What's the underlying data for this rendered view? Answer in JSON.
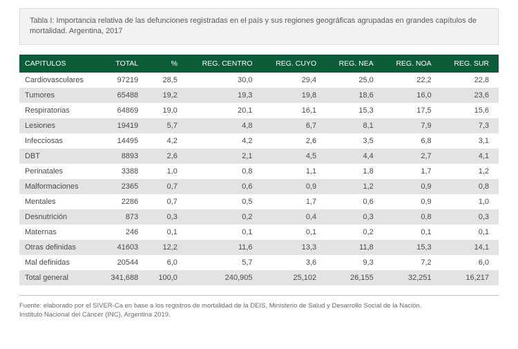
{
  "caption": "Tabla I: Importancia relativa de las defunciones registradas en el país y sus regiones geográficas agrupadas en grandes capítulos de mortalidad. Argentina, 2017",
  "table": {
    "header_bg": "#0d5c3a",
    "header_color": "#ffffff",
    "row_odd_bg": "#ffffff",
    "row_even_bg": "#e3e3e3",
    "columns": [
      "CAPITULOS",
      "TOTAL",
      "%",
      "REG. CENTRO",
      "REG. CUYO",
      "REG. NEA",
      "REG. NOA",
      "REG. SUR"
    ],
    "rows": [
      {
        "label": "Cardiovasculares",
        "total": "97219",
        "pct": "28,5",
        "centro": "30,0",
        "cuyo": "29,4",
        "nea": "25,0",
        "noa": "22,2",
        "sur": "22,8"
      },
      {
        "label": "Tumores",
        "total": "65488",
        "pct": "19,2",
        "centro": "19,3",
        "cuyo": "19,8",
        "nea": "18,6",
        "noa": "16,0",
        "sur": "23,6"
      },
      {
        "label": "Respiratorias",
        "total": "64869",
        "pct": "19,0",
        "centro": "20,1",
        "cuyo": "16,1",
        "nea": "15,3",
        "noa": "17,5",
        "sur": "15,6"
      },
      {
        "label": "Lesiones",
        "total": "19419",
        "pct": "5,7",
        "centro": "4,8",
        "cuyo": "6,7",
        "nea": "8,1",
        "noa": "7,9",
        "sur": "7,3"
      },
      {
        "label": "Infecciosas",
        "total": "14495",
        "pct": "4,2",
        "centro": "4,2",
        "cuyo": "2,6",
        "nea": "3,5",
        "noa": "6,8",
        "sur": "3,1"
      },
      {
        "label": "DBT",
        "total": "8893",
        "pct": "2,6",
        "centro": "2,1",
        "cuyo": "4,5",
        "nea": "4,4",
        "noa": "2,7",
        "sur": "4,1"
      },
      {
        "label": "Perinatales",
        "total": "3388",
        "pct": "1,0",
        "centro": "0,8",
        "cuyo": "1,1",
        "nea": "1,8",
        "noa": "1,7",
        "sur": "1,2"
      },
      {
        "label": "Malformaciones",
        "total": "2365",
        "pct": "0,7",
        "centro": "0,6",
        "cuyo": "0,9",
        "nea": "1,2",
        "noa": "0,9",
        "sur": "0,8"
      },
      {
        "label": "Mentales",
        "total": "2286",
        "pct": "0,7",
        "centro": "0,5",
        "cuyo": "1,7",
        "nea": "0,6",
        "noa": "0,9",
        "sur": "1,0"
      },
      {
        "label": "Desnutrición",
        "total": "873",
        "pct": "0,3",
        "centro": "0,2",
        "cuyo": "0,4",
        "nea": "0,3",
        "noa": "0,8",
        "sur": "0,3"
      },
      {
        "label": "Maternas",
        "total": "246",
        "pct": "0,1",
        "centro": "0,1",
        "cuyo": "0,1",
        "nea": "0,2",
        "noa": "0,1",
        "sur": "0,1"
      },
      {
        "label": "Otras definidas",
        "total": "41603",
        "pct": "12,2",
        "centro": "11,6",
        "cuyo": "13,3",
        "nea": "11,8",
        "noa": "15,3",
        "sur": "14,1"
      },
      {
        "label": "Mal definidas",
        "total": "20544",
        "pct": "6,0",
        "centro": "5,7",
        "cuyo": "3,6",
        "nea": "9,3",
        "noa": "7,2",
        "sur": "6,0"
      }
    ],
    "total_row": {
      "label": "Total general",
      "total": "341,688",
      "pct": "100,0",
      "centro": "240,905",
      "cuyo": "25,102",
      "nea": "26,155",
      "noa": "32,251",
      "sur": "16,217"
    }
  },
  "source_line1": "Fuente: elaborado por el SIVER-Ca en base a los registros de mortalidad de la DEIS, Ministerio de Salud y Desarrollo Social de la Nación.",
  "source_line2": "Instituto Nacional del Cáncer (INC), Argentina 2019."
}
